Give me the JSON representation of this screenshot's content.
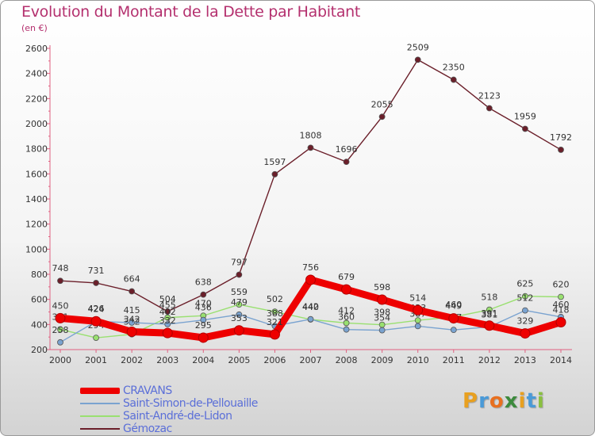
{
  "chart_data": {
    "type": "line",
    "title": "Evolution du Montant de la Dette par Habitant",
    "subtitle": "(en €)",
    "categories": [
      "2000",
      "2001",
      "2002",
      "2003",
      "2004",
      "2005",
      "2006",
      "2007",
      "2008",
      "2009",
      "2010",
      "2011",
      "2012",
      "2013",
      "2014"
    ],
    "ylim": [
      200,
      2600
    ],
    "yticks": [
      200,
      400,
      600,
      800,
      1000,
      1200,
      1400,
      1600,
      1800,
      2000,
      2200,
      2400,
      2600
    ],
    "grid": false,
    "legend_position": "bottom-left",
    "series": [
      {
        "name": "Gémozac",
        "color": "#6b1f2a",
        "values": [
          748,
          731,
          664,
          504,
          638,
          797,
          1597,
          1808,
          1696,
          2055,
          2509,
          2350,
          2123,
          1959,
          1792
        ],
        "labels": [
          "748",
          "731",
          "664",
          "504",
          "638",
          "797",
          "1597",
          "1808",
          "1696",
          "2055",
          "2509",
          "2350",
          "2123",
          "1959",
          "1792"
        ]
      },
      {
        "name": "Saint-André-de-Lidon",
        "color": "#99e070",
        "values": [
          361,
          294,
          322,
          455,
          470,
          559,
          502,
          440,
          412,
          398,
          433,
          460,
          518,
          625,
          620
        ],
        "labels": [
          "361",
          "294",
          "322",
          "455",
          "470",
          "559",
          "502",
          "440",
          "412",
          "398",
          "433",
          "460",
          "518",
          "625",
          "620"
        ]
      },
      {
        "name": "Saint-Simon-de-Pellouaille",
        "color": "#7aa3d0",
        "values": [
          258,
          424,
          415,
          402,
          436,
          479,
          388,
          442,
          360,
          354,
          387,
          357,
          381,
          512,
          460
        ],
        "labels": [
          "258",
          "424",
          "415",
          "402",
          "436",
          "479",
          "388",
          "442",
          "360",
          "354",
          "387",
          "357",
          "381",
          "512",
          "460"
        ]
      },
      {
        "name": "CRAVANS",
        "color": "#ee0000",
        "values": [
          450,
          426,
          342,
          332,
          295,
          353,
          321,
          756,
          679,
          598,
          514,
          449,
          391,
          329,
          418
        ],
        "labels": [
          "450",
          "426",
          "342",
          "332",
          "295",
          "353",
          "321",
          "756",
          "679",
          "598",
          "514",
          "449",
          "391",
          "329",
          "418"
        ]
      }
    ]
  },
  "legend": [
    "CRAVANS",
    "Saint-Simon-de-Pellouaille",
    "Saint-André-de-Lidon",
    "Gémozac"
  ],
  "logo": {
    "text": "Proxiti"
  }
}
